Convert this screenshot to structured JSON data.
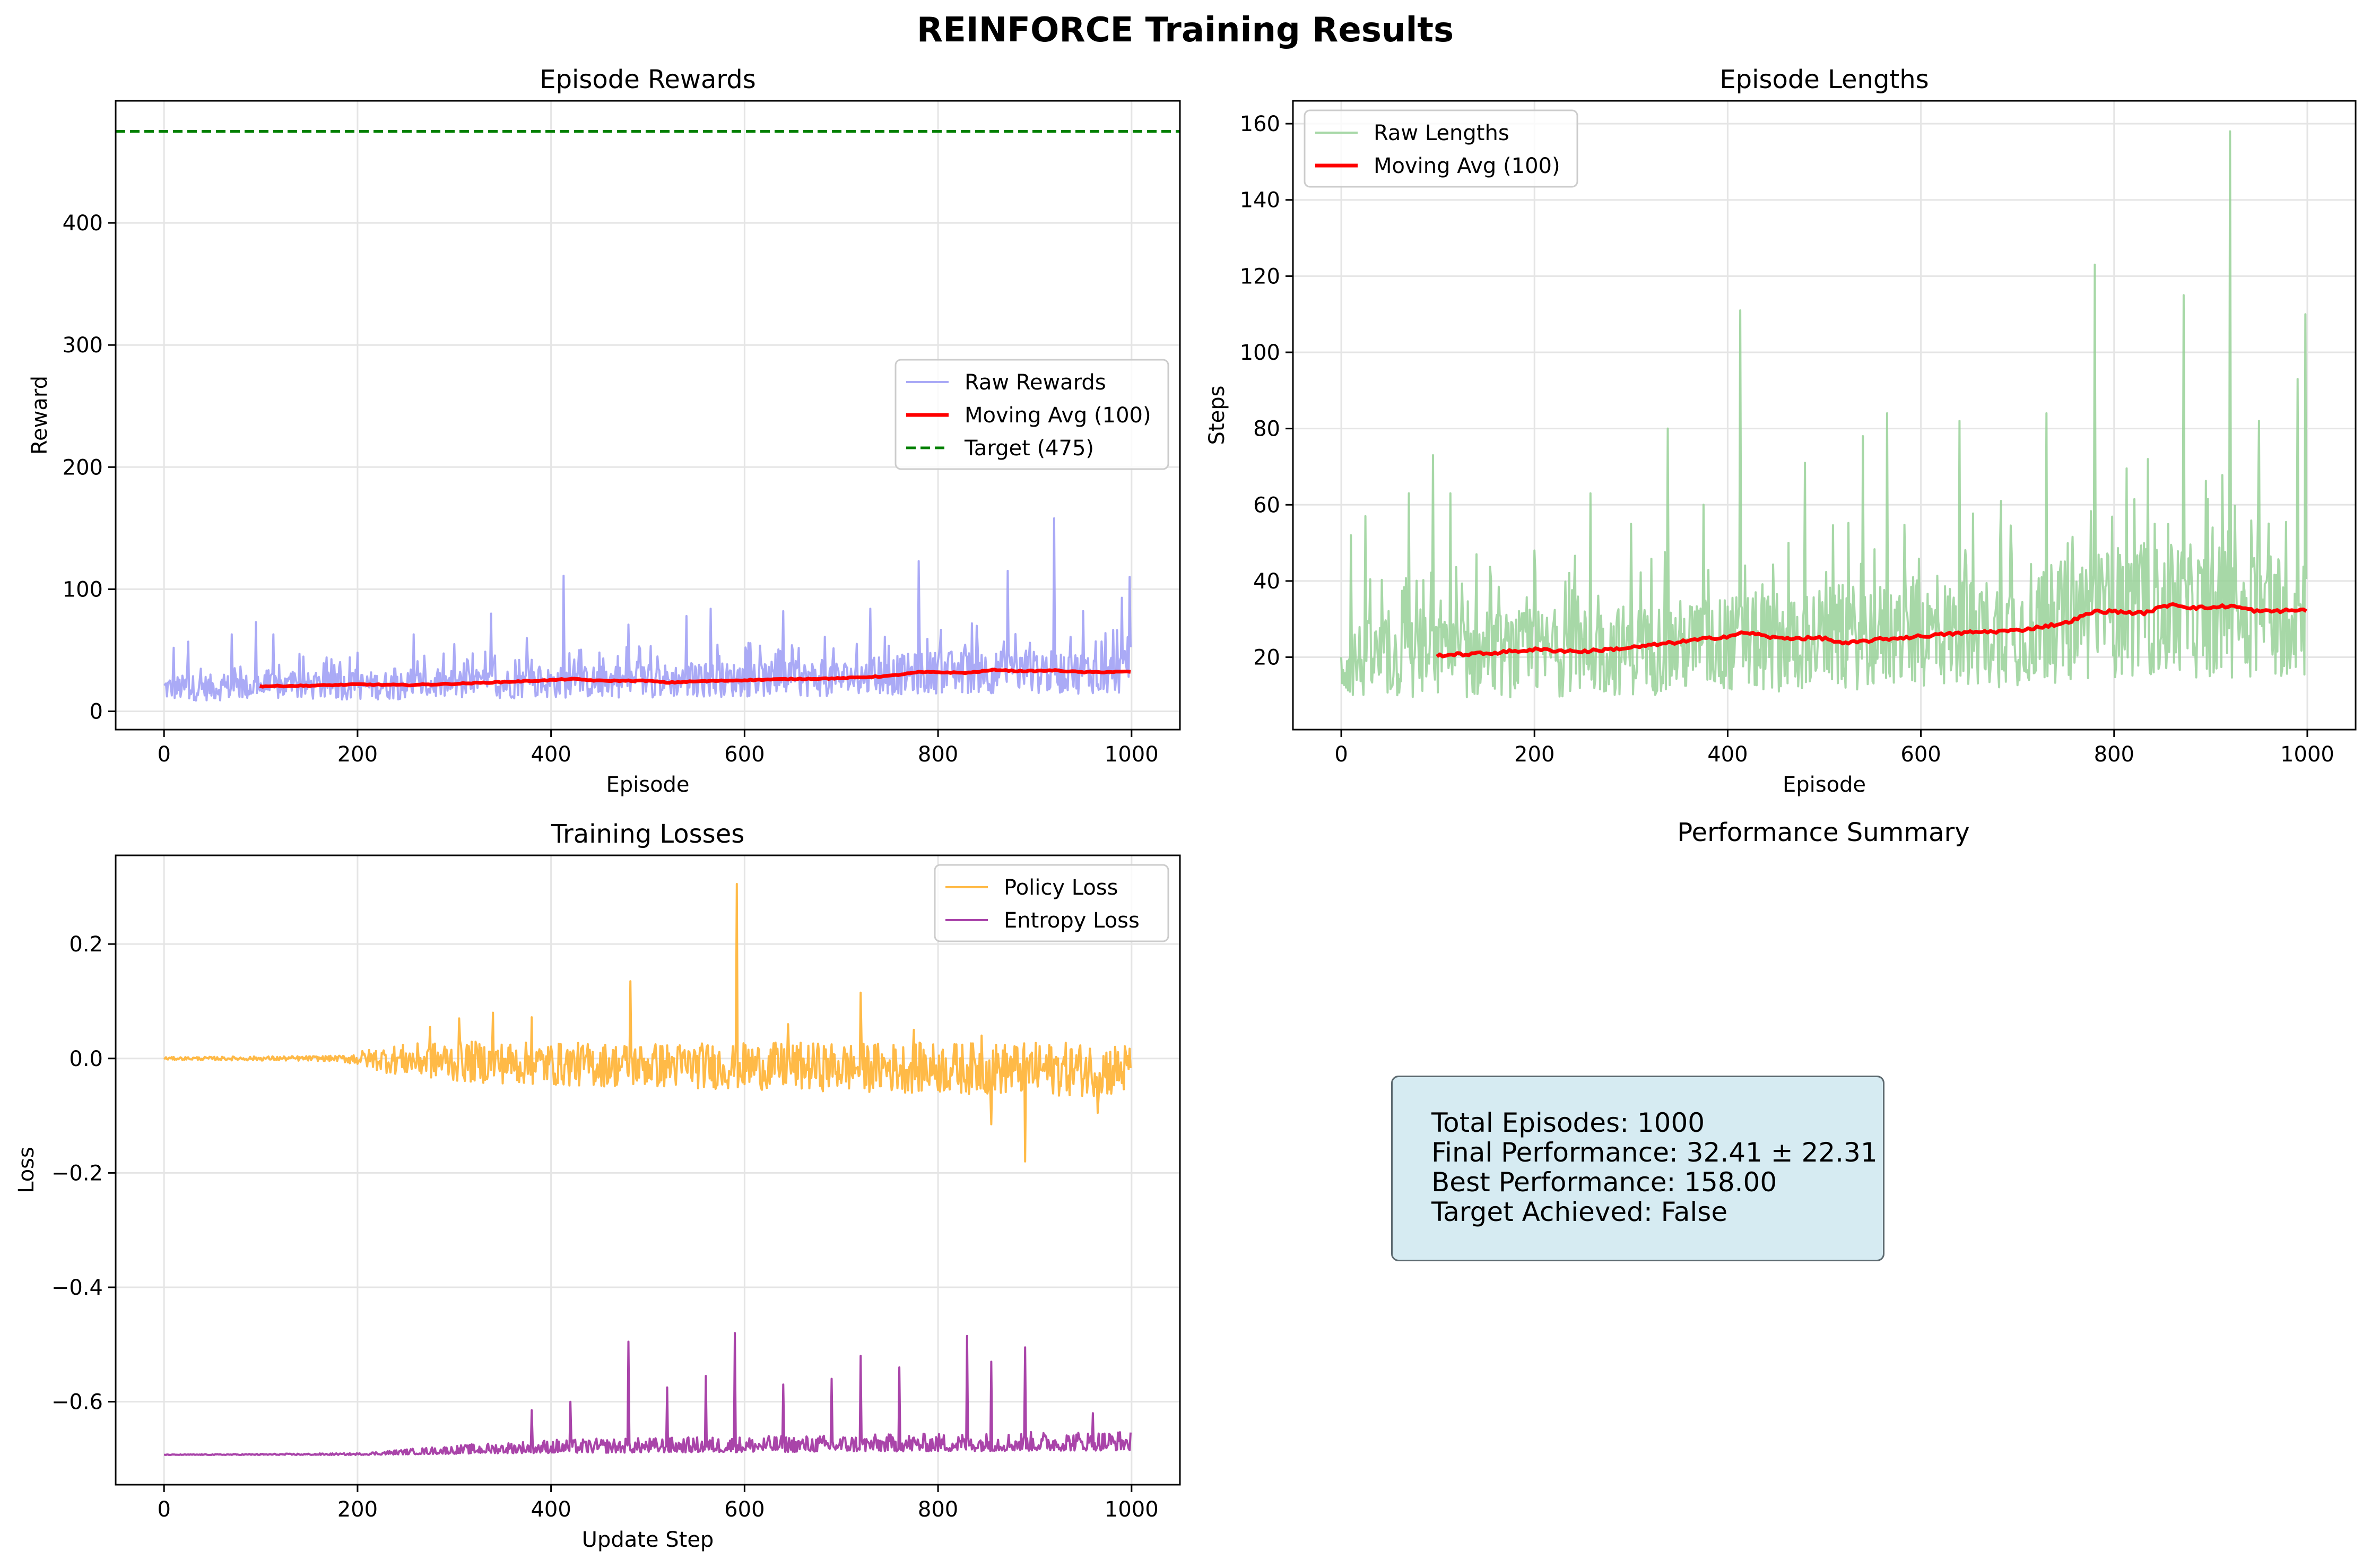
{
  "figure_title": "REINFORCE Training Results",
  "summary": {
    "title": "Performance Summary",
    "lines": [
      "Total Episodes: 1000",
      "Final Performance: 32.41 ± 22.31",
      "Best Performance: 158.00",
      "Target Achieved: False"
    ]
  },
  "colors": {
    "raw_rewards": "#9b9bf5",
    "moving_avg": "#ff0000",
    "target": "#008000",
    "raw_lengths": "#98d198",
    "policy_loss": "#ffb233",
    "entropy_loss": "#a030a0",
    "grid": "#e5e5e5"
  },
  "chart_data": [
    {
      "type": "line",
      "title": "Episode Rewards",
      "xlabel": "Episode",
      "ylabel": "Reward",
      "xlim": [
        -50,
        1050
      ],
      "ylim": [
        -15,
        500
      ],
      "xticks": [
        0,
        200,
        400,
        600,
        800,
        1000
      ],
      "yticks": [
        0,
        100,
        200,
        300,
        400
      ],
      "grid": true,
      "legend": "center-right",
      "series": [
        {
          "name": "Raw Rewards",
          "kind": "raw",
          "n": 1000,
          "base": [
            [
              0,
              19
            ],
            [
              100,
              20
            ],
            [
              300,
              22
            ],
            [
              500,
              25
            ],
            [
              700,
              27
            ],
            [
              800,
              32
            ],
            [
              1000,
              32
            ]
          ],
          "spikes": [
            [
              10,
              52
            ],
            [
              25,
              57
            ],
            [
              70,
              63
            ],
            [
              95,
              73
            ],
            [
              113,
              63
            ],
            [
              140,
              47
            ],
            [
              200,
              48
            ],
            [
              258,
              63
            ],
            [
              300,
              55
            ],
            [
              338,
              80
            ],
            [
              375,
              60
            ],
            [
              413,
              111
            ],
            [
              480,
              71
            ],
            [
              540,
              78
            ],
            [
              565,
              84
            ],
            [
              640,
              82
            ],
            [
              683,
              61
            ],
            [
              730,
              84
            ],
            [
              780,
              123
            ],
            [
              835,
              72
            ],
            [
              872,
              115
            ],
            [
              920,
              158
            ],
            [
              950,
              82
            ],
            [
              990,
              93
            ],
            [
              998,
              110
            ]
          ]
        },
        {
          "name": "Moving Avg (100)",
          "kind": "avg",
          "points": [
            [
              99,
              20.5
            ],
            [
              150,
              21
            ],
            [
              200,
              22
            ],
            [
              250,
              21.5
            ],
            [
              300,
              22.5
            ],
            [
              350,
              24
            ],
            [
              400,
              25.5
            ],
            [
              420,
              26.5
            ],
            [
              450,
              25
            ],
            [
              500,
              25
            ],
            [
              520,
              23.5
            ],
            [
              550,
              24.5
            ],
            [
              600,
              25.5
            ],
            [
              650,
              26.5
            ],
            [
              700,
              27
            ],
            [
              750,
              29
            ],
            [
              780,
              32
            ],
            [
              800,
              32
            ],
            [
              830,
              31.5
            ],
            [
              860,
              34
            ],
            [
              880,
              33
            ],
            [
              900,
              33
            ],
            [
              920,
              33.5
            ],
            [
              950,
              32
            ],
            [
              1000,
              32.4
            ]
          ]
        },
        {
          "name": "Target (475)",
          "kind": "hline",
          "y": 475
        }
      ]
    },
    {
      "type": "line",
      "title": "Episode Lengths",
      "xlabel": "Episode",
      "ylabel": "Steps",
      "xlim": [
        -50,
        1050
      ],
      "ylim": [
        1,
        166
      ],
      "xticks": [
        0,
        200,
        400,
        600,
        800,
        1000
      ],
      "yticks": [
        20,
        40,
        60,
        80,
        100,
        120,
        140,
        160
      ],
      "grid": true,
      "legend": "top-left",
      "series": [
        {
          "name": "Raw Lengths",
          "kind": "raw",
          "n": 1000,
          "base": [
            [
              0,
              19
            ],
            [
              100,
              20
            ],
            [
              300,
              22
            ],
            [
              500,
              25
            ],
            [
              700,
              27
            ],
            [
              800,
              32
            ],
            [
              1000,
              32
            ]
          ],
          "spikes": [
            [
              10,
              52
            ],
            [
              25,
              57
            ],
            [
              70,
              63
            ],
            [
              95,
              73
            ],
            [
              113,
              63
            ],
            [
              140,
              47
            ],
            [
              200,
              48
            ],
            [
              258,
              63
            ],
            [
              300,
              55
            ],
            [
              338,
              80
            ],
            [
              375,
              60
            ],
            [
              413,
              111
            ],
            [
              480,
              71
            ],
            [
              540,
              78
            ],
            [
              565,
              84
            ],
            [
              640,
              82
            ],
            [
              683,
              61
            ],
            [
              730,
              84
            ],
            [
              780,
              123
            ],
            [
              835,
              72
            ],
            [
              872,
              115
            ],
            [
              920,
              158
            ],
            [
              950,
              82
            ],
            [
              990,
              93
            ],
            [
              998,
              110
            ]
          ]
        },
        {
          "name": "Moving Avg (100)",
          "kind": "avg",
          "points": [
            [
              99,
              20.5
            ],
            [
              150,
              21
            ],
            [
              200,
              22
            ],
            [
              250,
              21.5
            ],
            [
              300,
              22.5
            ],
            [
              350,
              24
            ],
            [
              400,
              25.5
            ],
            [
              420,
              26.5
            ],
            [
              450,
              25
            ],
            [
              500,
              25
            ],
            [
              520,
              23.5
            ],
            [
              550,
              24.5
            ],
            [
              600,
              25.5
            ],
            [
              650,
              26.5
            ],
            [
              700,
              27
            ],
            [
              750,
              29
            ],
            [
              780,
              32
            ],
            [
              800,
              32
            ],
            [
              830,
              31.5
            ],
            [
              860,
              34
            ],
            [
              880,
              33
            ],
            [
              900,
              33
            ],
            [
              920,
              33.5
            ],
            [
              950,
              32
            ],
            [
              1000,
              32.4
            ]
          ]
        }
      ]
    },
    {
      "type": "line",
      "title": "Training Losses",
      "xlabel": "Update Step",
      "ylabel": "Loss",
      "xlim": [
        -50,
        1050
      ],
      "ylim": [
        -0.745,
        0.355
      ],
      "xticks": [
        0,
        200,
        400,
        600,
        800,
        1000
      ],
      "yticks": [
        -0.6,
        -0.4,
        -0.2,
        0.0,
        0.2
      ],
      "ytick_labels": [
        "−0.6",
        "−0.4",
        "−0.2",
        "0.0",
        "0.2"
      ],
      "grid": true,
      "legend": "top-right",
      "series": [
        {
          "name": "Policy Loss",
          "kind": "loss",
          "center": 0.0,
          "drift": [
            [
              0,
              0
            ],
            [
              200,
              0
            ],
            [
              400,
              -0.01
            ],
            [
              1000,
              -0.02
            ]
          ],
          "amp": [
            [
              0,
              0.002
            ],
            [
              180,
              0.004
            ],
            [
              230,
              0.02
            ],
            [
              300,
              0.03
            ],
            [
              1000,
              0.04
            ]
          ],
          "spikes": [
            [
              275,
              0.055
            ],
            [
              305,
              0.07
            ],
            [
              340,
              0.08
            ],
            [
              380,
              0.072
            ],
            [
              482,
              0.135
            ],
            [
              592,
              0.305
            ],
            [
              645,
              0.06
            ],
            [
              720,
              0.115
            ],
            [
              775,
              0.05
            ],
            [
              845,
              0.04
            ],
            [
              855,
              -0.115
            ],
            [
              890,
              -0.18
            ],
            [
              965,
              -0.095
            ]
          ]
        },
        {
          "name": "Entropy Loss",
          "kind": "loss",
          "center": -0.693,
          "drift": [
            [
              0,
              -0.693
            ],
            [
              200,
              -0.693
            ],
            [
              350,
              -0.69
            ],
            [
              1000,
              -0.685
            ]
          ],
          "amp": [
            [
              0,
              0.0005
            ],
            [
              200,
              0.002
            ],
            [
              280,
              0.008
            ],
            [
              400,
              0.015
            ],
            [
              1000,
              0.022
            ]
          ],
          "spikes": [
            [
              380,
              -0.615
            ],
            [
              420,
              -0.6
            ],
            [
              480,
              -0.495
            ],
            [
              520,
              -0.575
            ],
            [
              560,
              -0.555
            ],
            [
              590,
              -0.48
            ],
            [
              640,
              -0.57
            ],
            [
              690,
              -0.56
            ],
            [
              720,
              -0.52
            ],
            [
              760,
              -0.54
            ],
            [
              830,
              -0.485
            ],
            [
              855,
              -0.53
            ],
            [
              890,
              -0.505
            ],
            [
              960,
              -0.62
            ]
          ]
        }
      ]
    }
  ]
}
